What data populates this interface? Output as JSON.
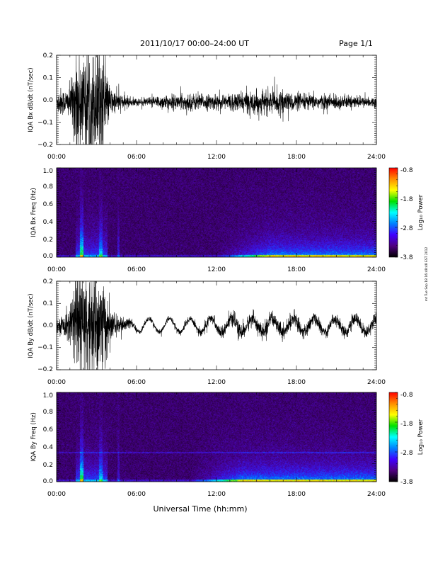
{
  "header": {
    "title": "2011/10/17  00:00–24:00 UT",
    "page": "Page 1/1"
  },
  "footer": {
    "xlabel": "Universal Time (hh:mm)",
    "stamp": "mt Tue Sep 18 16:48:48 EST 2012"
  },
  "chart_data": [
    {
      "type": "line",
      "ylabel": "IQA Bx dB/dt (nT/sec)",
      "ylim": [
        -0.2,
        0.2
      ],
      "yticks": [
        "0.2",
        "0.1",
        "0.0",
        "−0.1",
        "−0.2"
      ],
      "xlim": [
        "00:00",
        "24:00"
      ],
      "xticks": [
        "00:00",
        "06:00",
        "12:00",
        "18:00",
        "24:00"
      ],
      "envelope": {
        "hours": [
          0,
          0.25,
          0.5,
          0.75,
          1.0,
          1.25,
          1.5,
          1.75,
          2.0,
          2.5,
          3.0,
          3.5,
          3.75,
          4.0,
          4.5,
          5.0,
          5.5,
          6.0,
          6.5,
          7.0,
          7.5,
          8.0,
          9.0,
          10.0,
          11.0,
          12.0,
          13.0,
          14.0,
          15.0,
          16.0,
          17.0,
          18.0,
          19.0,
          20.0,
          21.0,
          22.0,
          23.0,
          24.0
        ],
        "amp": [
          0.04,
          0.06,
          0.05,
          0.05,
          0.07,
          0.12,
          0.22,
          0.22,
          0.22,
          0.22,
          0.22,
          0.2,
          0.12,
          0.06,
          0.04,
          0.03,
          0.02,
          0.015,
          0.015,
          0.02,
          0.025,
          0.03,
          0.03,
          0.035,
          0.03,
          0.03,
          0.035,
          0.04,
          0.045,
          0.045,
          0.04,
          0.035,
          0.03,
          0.03,
          0.03,
          0.025,
          0.02,
          0.02
        ]
      },
      "baseline": -0.01
    },
    {
      "type": "heatmap",
      "ylabel": "IQA Bx Freq (Hz)",
      "ylim": [
        0.0,
        1.0
      ],
      "yticks": [
        "1.0",
        "0.8",
        "0.6",
        "0.4",
        "0.2",
        "0.0"
      ],
      "xlim": [
        "00:00",
        "24:00"
      ],
      "xticks": [
        "00:00",
        "06:00",
        "12:00",
        "18:00",
        "24:00"
      ],
      "colorbar": {
        "label": "Log₁₀ Power",
        "range": [
          -3.8,
          -0.8
        ],
        "ticks": [
          "-0.8",
          "-1.8",
          "-2.8",
          "-3.8"
        ]
      },
      "enhancement": {
        "lowfreq_late_hours": [
          12,
          24
        ],
        "event_hours": [
          1.4,
          3.8
        ]
      }
    },
    {
      "type": "line",
      "ylabel": "IQA By dB/dt (nT/sec)",
      "ylim": [
        -0.2,
        0.2
      ],
      "yticks": [
        "0.2",
        "0.1",
        "0.0",
        "−0.1",
        "−0.2"
      ],
      "xlim": [
        "00:00",
        "24:00"
      ],
      "xticks": [
        "00:00",
        "06:00",
        "12:00",
        "18:00",
        "24:00"
      ],
      "envelope": {
        "hours": [
          0,
          0.25,
          0.5,
          0.75,
          1.0,
          1.25,
          1.5,
          1.75,
          2.0,
          2.5,
          3.0,
          3.5,
          3.75,
          4.0,
          4.5,
          5.0,
          5.5,
          6.0,
          6.5,
          7.0,
          7.5,
          8.0,
          9.0,
          10.0,
          11.0,
          12.0,
          13.0,
          14.0,
          15.0,
          16.0,
          17.0,
          18.0,
          19.0,
          20.0,
          21.0,
          22.0,
          23.0,
          24.0
        ],
        "amp": [
          0.02,
          0.03,
          0.04,
          0.06,
          0.09,
          0.14,
          0.22,
          0.22,
          0.22,
          0.22,
          0.22,
          0.22,
          0.14,
          0.06,
          0.04,
          0.03,
          0.02,
          0.01,
          0.01,
          0.01,
          0.01,
          0.01,
          0.012,
          0.015,
          0.02,
          0.02,
          0.025,
          0.03,
          0.03,
          0.035,
          0.03,
          0.03,
          0.025,
          0.025,
          0.025,
          0.025,
          0.025,
          0.025
        ]
      },
      "oscillation": {
        "amplitude": 0.03,
        "period_hours": 1.55,
        "start_hour": 5.0
      }
    },
    {
      "type": "heatmap",
      "ylabel": "IQA By Freq (Hz)",
      "ylim": [
        0.0,
        1.0
      ],
      "yticks": [
        "1.0",
        "0.8",
        "0.6",
        "0.4",
        "0.2",
        "0.0"
      ],
      "xlim": [
        "00:00",
        "24:00"
      ],
      "xticks": [
        "00:00",
        "06:00",
        "12:00",
        "18:00",
        "24:00"
      ],
      "colorbar": {
        "label": "Log₁₀ Power",
        "range": [
          -3.8,
          -0.8
        ],
        "ticks": [
          "-0.8",
          "-1.8",
          "-2.8",
          "-3.8"
        ]
      },
      "enhancement": {
        "lowfreq_late_hours": [
          10,
          24
        ],
        "event_hours": [
          1.4,
          3.8
        ],
        "line_freq": 0.33
      }
    }
  ]
}
